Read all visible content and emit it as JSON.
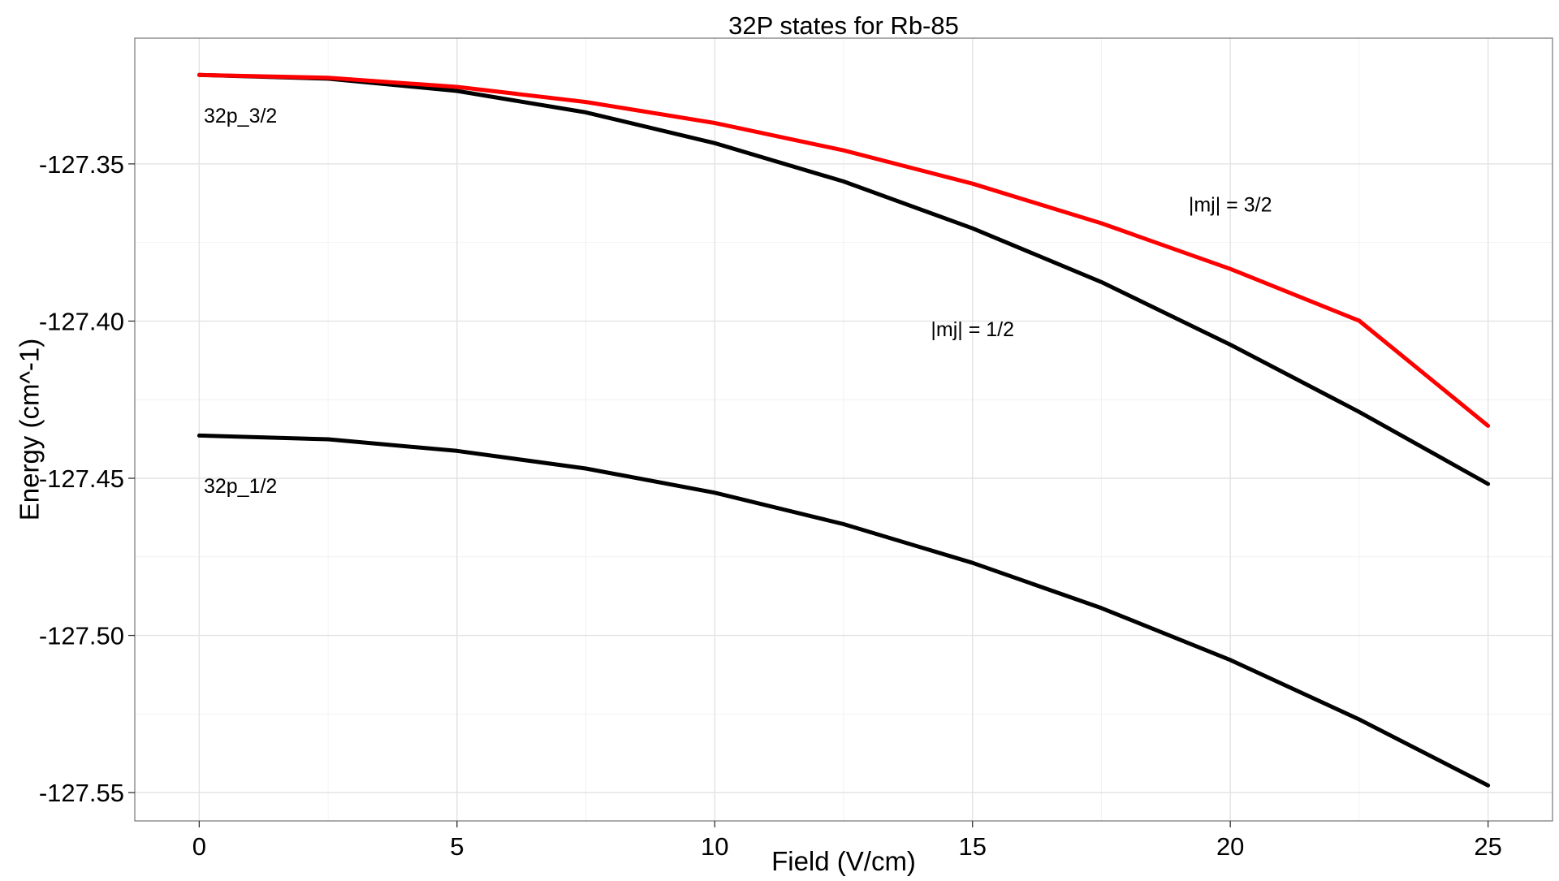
{
  "chart_data": {
    "type": "line",
    "title": "32P states for Rb-85",
    "xlabel": "Field (V/cm)",
    "ylabel": "Energy (cm^-1)",
    "xlim": [
      -1.25,
      26.25
    ],
    "ylim": [
      -127.559,
      -127.31
    ],
    "x_ticks": [
      0,
      5,
      10,
      15,
      20,
      25
    ],
    "x_tick_labels": [
      "0",
      "5",
      "10",
      "15",
      "20",
      "25"
    ],
    "y_ticks": [
      -127.35,
      -127.4,
      -127.45,
      -127.5,
      -127.55
    ],
    "y_tick_labels": [
      "-127.35",
      "-127.40",
      "-127.45",
      "-127.50",
      "-127.55"
    ],
    "grid": true,
    "legend": "none",
    "x": [
      0,
      2.5,
      5,
      7.5,
      10,
      12.5,
      15,
      17.5,
      20,
      22.5,
      25
    ],
    "series": [
      {
        "color": "#000000",
        "values": [
          -127.4364,
          -127.4376,
          -127.4413,
          -127.4469,
          -127.4546,
          -127.4646,
          -127.4769,
          -127.4913,
          -127.5078,
          -127.5267,
          -127.5477
        ]
      },
      {
        "color": "#000000",
        "values": [
          -127.3217,
          -127.3229,
          -127.3268,
          -127.3336,
          -127.3434,
          -127.3556,
          -127.3705,
          -127.3876,
          -127.4075,
          -127.4289,
          -127.4518
        ]
      },
      {
        "color": "#ff0000",
        "values": [
          -127.3217,
          -127.3226,
          -127.3255,
          -127.3303,
          -127.337,
          -127.3457,
          -127.3563,
          -127.3689,
          -127.3834,
          -127.3999,
          -127.4333
        ]
      }
    ],
    "annotations": [
      {
        "text": "32p_3/2",
        "x": 0.8,
        "y": -127.3345
      },
      {
        "text": "32p_1/2",
        "x": 0.8,
        "y": -127.4523
      },
      {
        "text": "|mj| = 3/2",
        "x": 20,
        "y": -127.3628
      },
      {
        "text": "|mj| = 1/2",
        "x": 15,
        "y": -127.4025
      }
    ]
  }
}
